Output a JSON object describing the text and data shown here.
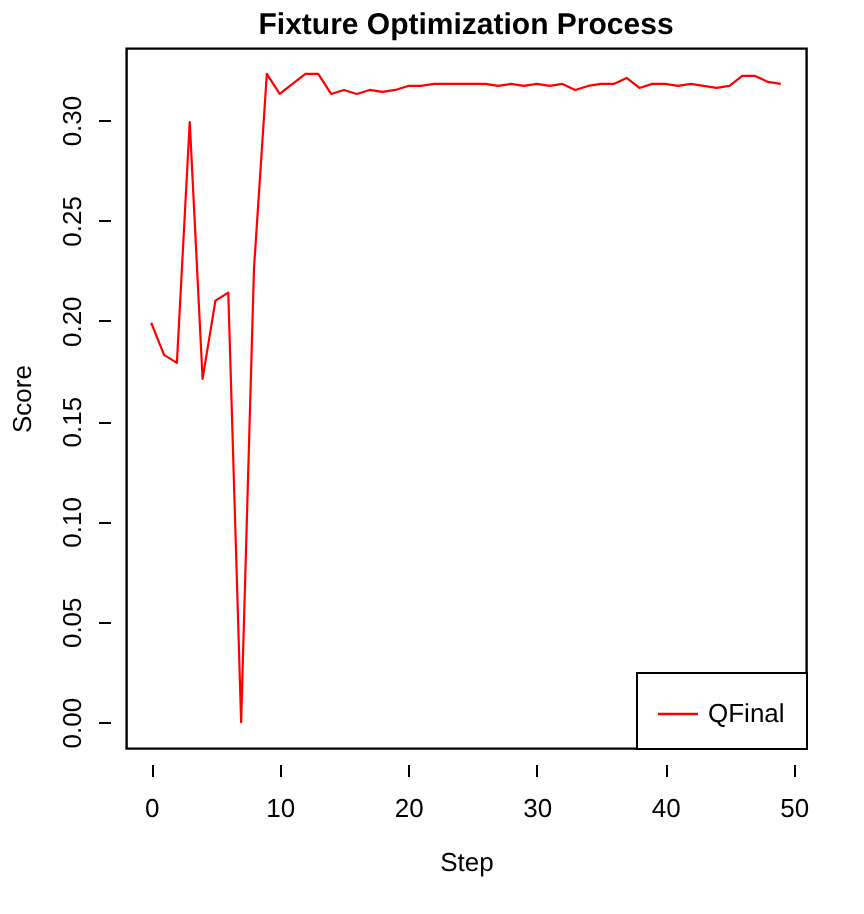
{
  "chart_data": {
    "type": "line",
    "title": "Fixture Optimization Process",
    "xlabel": "Step",
    "ylabel": "Score",
    "x": [
      0,
      1,
      2,
      3,
      4,
      5,
      6,
      7,
      8,
      9,
      10,
      11,
      12,
      13,
      14,
      15,
      16,
      17,
      18,
      19,
      20,
      21,
      22,
      23,
      24,
      25,
      26,
      27,
      28,
      29,
      30,
      31,
      32,
      33,
      34,
      35,
      36,
      37,
      38,
      39,
      40,
      41,
      42,
      43,
      44,
      45,
      46,
      47,
      48,
      49
    ],
    "series": [
      {
        "name": "QFinal",
        "color": "#ff0000",
        "values": [
          0.199,
          0.183,
          0.179,
          0.299,
          0.171,
          0.21,
          0.214,
          0.0,
          0.226,
          0.323,
          0.313,
          0.318,
          0.323,
          0.323,
          0.313,
          0.315,
          0.313,
          0.315,
          0.314,
          0.315,
          0.317,
          0.317,
          0.318,
          0.318,
          0.318,
          0.318,
          0.318,
          0.317,
          0.318,
          0.317,
          0.318,
          0.317,
          0.318,
          0.315,
          0.317,
          0.318,
          0.318,
          0.321,
          0.316,
          0.318,
          0.318,
          0.317,
          0.318,
          0.317,
          0.316,
          0.317,
          0.322,
          0.322,
          0.319,
          0.318
        ]
      }
    ],
    "xlim": [
      -1.96,
      50.96
    ],
    "ylim": [
      -0.0129,
      0.3359
    ],
    "xticks": [
      0,
      10,
      20,
      30,
      40,
      50
    ],
    "yticks": [
      {
        "value": 0,
        "label": "0.00"
      },
      {
        "value": 0.05,
        "label": "0.05"
      },
      {
        "value": 0.1,
        "label": "0.10"
      },
      {
        "value": 0.15,
        "label": "0.15"
      },
      {
        "value": 0.2,
        "label": "0.20"
      },
      {
        "value": 0.25,
        "label": "0.25"
      },
      {
        "value": 0.3,
        "label": "0.30"
      }
    ],
    "grid": false,
    "legend": "bottom right",
    "line_style": "solid",
    "marker": "none"
  }
}
